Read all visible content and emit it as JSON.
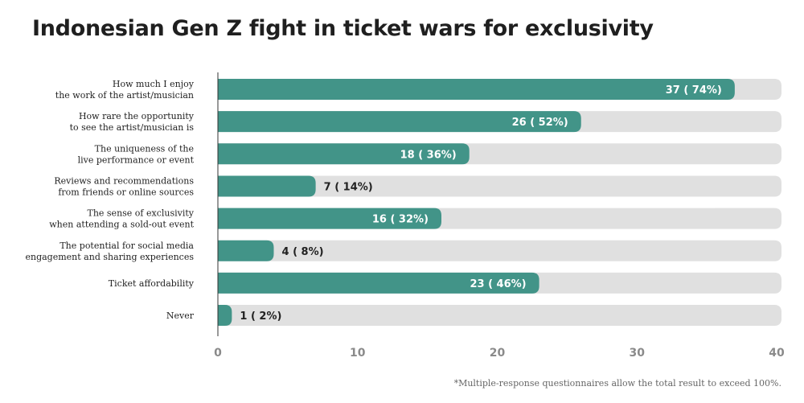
{
  "title": "Indonesian Gen Z fight in ticket wars for exclusivity",
  "footnote": "*Multiple-response questionnaires allow the total result to exceed 100%.",
  "colors": {
    "bar": "#429488",
    "track": "#e0e0e0",
    "value_inside": "#ffffff",
    "value_outside": "#222222",
    "axis": "#333333",
    "tick": "#8a8a8a"
  },
  "chart_data": {
    "type": "bar",
    "orientation": "horizontal",
    "categories": [
      [
        "How much I enjoy",
        "the work of the artist/musician"
      ],
      [
        "How rare the opportunity",
        "to see the artist/musician is"
      ],
      [
        "The uniqueness of the",
        "live performance or event"
      ],
      [
        "Reviews and recommendations",
        "from friends or online sources"
      ],
      [
        "The sense of exclusivity",
        "when attending a sold-out event"
      ],
      [
        "The potential for social media",
        "engagement and sharing experiences"
      ],
      [
        "Ticket affordability"
      ],
      [
        "Never"
      ]
    ],
    "values": [
      37,
      26,
      18,
      7,
      16,
      4,
      23,
      1
    ],
    "value_labels": [
      "37 ( 74%)",
      "26 ( 52%)",
      "18 ( 36%)",
      "7 ( 14%)",
      "16 ( 32%)",
      "4 ( 8%)",
      "23 ( 46%)",
      "1 ( 2%)"
    ],
    "xlim": [
      0,
      40
    ],
    "xticks": [
      "0",
      "10",
      "20",
      "30",
      "40"
    ],
    "grid": false
  }
}
